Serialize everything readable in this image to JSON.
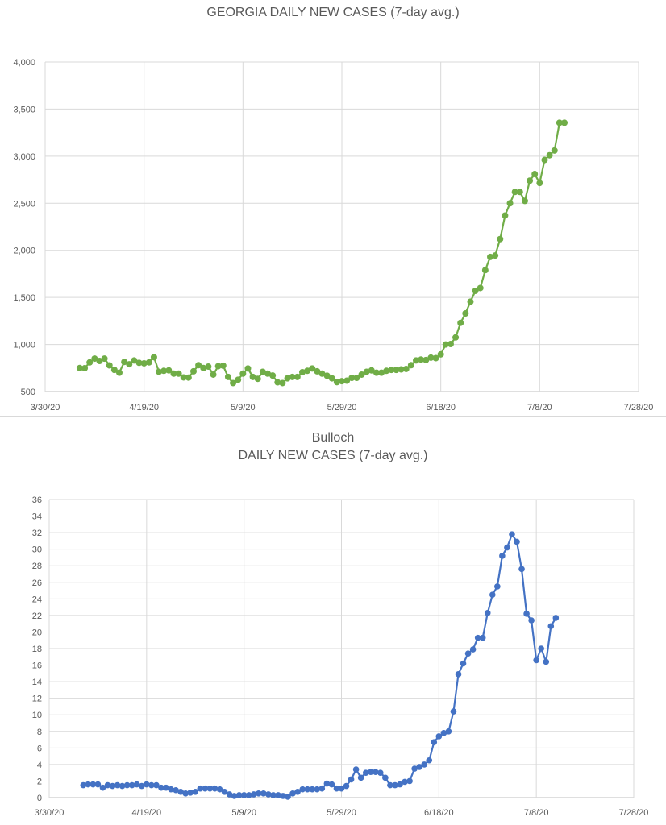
{
  "chart_data": [
    {
      "type": "line",
      "title": "GEORGIA DAILY NEW CASES (7-day avg.)",
      "subtitle": "",
      "xlabel": "",
      "ylabel": "",
      "x_start": "3/30/20",
      "x_tick_labels": [
        "3/30/20",
        "4/19/20",
        "5/9/20",
        "5/29/20",
        "6/18/20",
        "7/8/20",
        "7/28/20"
      ],
      "xlim": [
        "3/30/20",
        "7/28/20"
      ],
      "y_tick_labels": [
        "500",
        "1,000",
        "1,500",
        "2,000",
        "2,500",
        "3,000",
        "3,500",
        "4,000"
      ],
      "ylim": [
        500,
        4000
      ],
      "grid": true,
      "color": "#70ad47",
      "series": [
        {
          "name": "",
          "values": [
            [
              "4/6/20",
              750
            ],
            [
              "4/7/20",
              748
            ],
            [
              "4/8/20",
              810
            ],
            [
              "4/9/20",
              850
            ],
            [
              "4/10/20",
              825
            ],
            [
              "4/11/20",
              850
            ],
            [
              "4/12/20",
              778
            ],
            [
              "4/13/20",
              730
            ],
            [
              "4/14/20",
              700
            ],
            [
              "4/15/20",
              815
            ],
            [
              "4/16/20",
              790
            ],
            [
              "4/17/20",
              830
            ],
            [
              "4/18/20",
              805
            ],
            [
              "4/19/20",
              800
            ],
            [
              "4/20/20",
              810
            ],
            [
              "4/21/20",
              865
            ],
            [
              "4/22/20",
              710
            ],
            [
              "4/23/20",
              720
            ],
            [
              "4/24/20",
              725
            ],
            [
              "4/25/20",
              690
            ],
            [
              "4/26/20",
              690
            ],
            [
              "4/27/20",
              650
            ],
            [
              "4/28/20",
              648
            ],
            [
              "4/29/20",
              715
            ],
            [
              "4/30/20",
              780
            ],
            [
              "5/1/20",
              750
            ],
            [
              "5/2/20",
              765
            ],
            [
              "5/3/20",
              680
            ],
            [
              "5/4/20",
              770
            ],
            [
              "5/5/20",
              775
            ],
            [
              "5/6/20",
              655
            ],
            [
              "5/7/20",
              590
            ],
            [
              "5/8/20",
              625
            ],
            [
              "5/9/20",
              690
            ],
            [
              "5/10/20",
              745
            ],
            [
              "5/11/20",
              655
            ],
            [
              "5/12/20",
              635
            ],
            [
              "5/13/20",
              710
            ],
            [
              "5/14/20",
              690
            ],
            [
              "5/15/20",
              670
            ],
            [
              "5/16/20",
              598
            ],
            [
              "5/17/20",
              590
            ],
            [
              "5/18/20",
              640
            ],
            [
              "5/19/20",
              655
            ],
            [
              "5/20/20",
              655
            ],
            [
              "5/21/20",
              705
            ],
            [
              "5/22/20",
              720
            ],
            [
              "5/23/20",
              745
            ],
            [
              "5/24/20",
              715
            ],
            [
              "5/25/20",
              690
            ],
            [
              "5/26/20",
              668
            ],
            [
              "5/27/20",
              640
            ],
            [
              "5/28/20",
              600
            ],
            [
              "5/29/20",
              610
            ],
            [
              "5/30/20",
              615
            ],
            [
              "5/31/20",
              645
            ],
            [
              "6/1/20",
              645
            ],
            [
              "6/2/20",
              680
            ],
            [
              "6/3/20",
              710
            ],
            [
              "6/4/20",
              725
            ],
            [
              "6/5/20",
              700
            ],
            [
              "6/6/20",
              700
            ],
            [
              "6/7/20",
              720
            ],
            [
              "6/8/20",
              730
            ],
            [
              "6/9/20",
              730
            ],
            [
              "6/10/20",
              735
            ],
            [
              "6/11/20",
              740
            ],
            [
              "6/12/20",
              780
            ],
            [
              "6/13/20",
              830
            ],
            [
              "6/14/20",
              840
            ],
            [
              "6/15/20",
              835
            ],
            [
              "6/16/20",
              860
            ],
            [
              "6/17/20",
              855
            ],
            [
              "6/18/20",
              895
            ],
            [
              "6/19/20",
              1000
            ],
            [
              "6/20/20",
              1005
            ],
            [
              "6/21/20",
              1075
            ],
            [
              "6/22/20",
              1230
            ],
            [
              "6/23/20",
              1330
            ],
            [
              "6/24/20",
              1455
            ],
            [
              "6/25/20",
              1570
            ],
            [
              "6/26/20",
              1600
            ],
            [
              "6/27/20",
              1790
            ],
            [
              "6/28/20",
              1930
            ],
            [
              "6/29/20",
              1945
            ],
            [
              "6/30/20",
              2120
            ],
            [
              "7/1/20",
              2370
            ],
            [
              "7/2/20",
              2500
            ],
            [
              "7/3/20",
              2620
            ],
            [
              "7/4/20",
              2620
            ],
            [
              "7/5/20",
              2525
            ],
            [
              "7/6/20",
              2740
            ],
            [
              "7/7/20",
              2810
            ],
            [
              "7/8/20",
              2715
            ],
            [
              "7/9/20",
              2960
            ],
            [
              "7/10/20",
              3010
            ],
            [
              "7/11/20",
              3060
            ],
            [
              "7/12/20",
              3355
            ],
            [
              "7/13/20",
              3355
            ]
          ]
        }
      ]
    },
    {
      "type": "line",
      "title": "Bulloch",
      "subtitle": "DAILY NEW CASES (7-day avg.)",
      "xlabel": "",
      "ylabel": "",
      "x_start": "3/30/20",
      "x_tick_labels": [
        "3/30/20",
        "4/19/20",
        "5/9/20",
        "5/29/20",
        "6/18/20",
        "7/8/20",
        "7/28/20"
      ],
      "xlim": [
        "3/30/20",
        "7/28/20"
      ],
      "y_tick_labels": [
        "0",
        "2",
        "4",
        "6",
        "8",
        "10",
        "12",
        "14",
        "16",
        "18",
        "20",
        "22",
        "24",
        "26",
        "28",
        "30",
        "32",
        "34",
        "36"
      ],
      "ylim": [
        0,
        36
      ],
      "grid": true,
      "color": "#4472c4",
      "series": [
        {
          "name": "",
          "values": [
            [
              "4/6/20",
              1.5
            ],
            [
              "4/7/20",
              1.6
            ],
            [
              "4/8/20",
              1.6
            ],
            [
              "4/9/20",
              1.6
            ],
            [
              "4/10/20",
              1.2
            ],
            [
              "4/11/20",
              1.5
            ],
            [
              "4/12/20",
              1.4
            ],
            [
              "4/13/20",
              1.5
            ],
            [
              "4/14/20",
              1.4
            ],
            [
              "4/15/20",
              1.5
            ],
            [
              "4/16/20",
              1.5
            ],
            [
              "4/17/20",
              1.6
            ],
            [
              "4/18/20",
              1.4
            ],
            [
              "4/19/20",
              1.6
            ],
            [
              "4/20/20",
              1.5
            ],
            [
              "4/21/20",
              1.5
            ],
            [
              "4/22/20",
              1.2
            ],
            [
              "4/23/20",
              1.2
            ],
            [
              "4/24/20",
              1.0
            ],
            [
              "4/25/20",
              0.9
            ],
            [
              "4/26/20",
              0.7
            ],
            [
              "4/27/20",
              0.5
            ],
            [
              "4/28/20",
              0.6
            ],
            [
              "4/29/20",
              0.7
            ],
            [
              "4/30/20",
              1.1
            ],
            [
              "5/1/20",
              1.1
            ],
            [
              "5/2/20",
              1.1
            ],
            [
              "5/3/20",
              1.1
            ],
            [
              "5/4/20",
              1.0
            ],
            [
              "5/5/20",
              0.7
            ],
            [
              "5/6/20",
              0.4
            ],
            [
              "5/7/20",
              0.2
            ],
            [
              "5/8/20",
              0.3
            ],
            [
              "5/9/20",
              0.3
            ],
            [
              "5/10/20",
              0.3
            ],
            [
              "5/11/20",
              0.4
            ],
            [
              "5/12/20",
              0.5
            ],
            [
              "5/13/20",
              0.5
            ],
            [
              "5/14/20",
              0.4
            ],
            [
              "5/15/20",
              0.3
            ],
            [
              "5/16/20",
              0.3
            ],
            [
              "5/17/20",
              0.2
            ],
            [
              "5/18/20",
              0.1
            ],
            [
              "5/19/20",
              0.5
            ],
            [
              "5/20/20",
              0.7
            ],
            [
              "5/21/20",
              1.0
            ],
            [
              "5/22/20",
              1.0
            ],
            [
              "5/23/20",
              1.0
            ],
            [
              "5/24/20",
              1.0
            ],
            [
              "5/25/20",
              1.1
            ],
            [
              "5/26/20",
              1.7
            ],
            [
              "5/27/20",
              1.6
            ],
            [
              "5/28/20",
              1.1
            ],
            [
              "5/29/20",
              1.1
            ],
            [
              "5/30/20",
              1.4
            ],
            [
              "5/31/20",
              2.2
            ],
            [
              "6/1/20",
              3.4
            ],
            [
              "6/2/20",
              2.4
            ],
            [
              "6/3/20",
              3.0
            ],
            [
              "6/4/20",
              3.1
            ],
            [
              "6/5/20",
              3.1
            ],
            [
              "6/6/20",
              3.0
            ],
            [
              "6/7/20",
              2.4
            ],
            [
              "6/8/20",
              1.5
            ],
            [
              "6/9/20",
              1.5
            ],
            [
              "6/10/20",
              1.6
            ],
            [
              "6/11/20",
              1.9
            ],
            [
              "6/12/20",
              2.0
            ],
            [
              "6/13/20",
              3.5
            ],
            [
              "6/14/20",
              3.7
            ],
            [
              "6/15/20",
              4.0
            ],
            [
              "6/16/20",
              4.5
            ],
            [
              "6/17/20",
              6.7
            ],
            [
              "6/18/20",
              7.4
            ],
            [
              "6/19/20",
              7.8
            ],
            [
              "6/20/20",
              8.0
            ],
            [
              "6/21/20",
              10.4
            ],
            [
              "6/22/20",
              14.9
            ],
            [
              "6/23/20",
              16.2
            ],
            [
              "6/24/20",
              17.4
            ],
            [
              "6/25/20",
              17.9
            ],
            [
              "6/26/20",
              19.3
            ],
            [
              "6/27/20",
              19.3
            ],
            [
              "6/28/20",
              22.3
            ],
            [
              "6/29/20",
              24.5
            ],
            [
              "6/30/20",
              25.5
            ],
            [
              "7/1/20",
              29.2
            ],
            [
              "7/2/20",
              30.2
            ],
            [
              "7/3/20",
              31.8
            ],
            [
              "7/4/20",
              30.9
            ],
            [
              "7/5/20",
              27.6
            ],
            [
              "7/6/20",
              22.2
            ],
            [
              "7/7/20",
              21.4
            ],
            [
              "7/8/20",
              16.6
            ],
            [
              "7/9/20",
              18.0
            ],
            [
              "7/10/20",
              16.4
            ],
            [
              "7/11/20",
              20.7
            ],
            [
              "7/12/20",
              21.7
            ]
          ]
        }
      ]
    }
  ]
}
